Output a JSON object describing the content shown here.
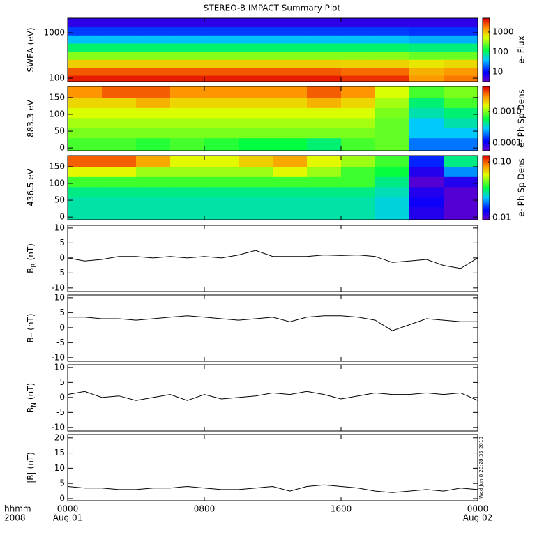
{
  "title": "STEREO-B IMPACT Summary Plot",
  "timestamp": "Wed Jun  8 20:28:35 2010",
  "x_axis": {
    "xlim": [
      0,
      24
    ],
    "xticks": [
      {
        "value": 0,
        "label": "0000"
      },
      {
        "value": 8,
        "label": "0800"
      },
      {
        "value": 16,
        "label": "1600"
      },
      {
        "value": 24,
        "label": "0000"
      }
    ],
    "dates": [
      {
        "value": 0,
        "label": "Aug 01"
      },
      {
        "value": 24,
        "label": "Aug 02"
      }
    ],
    "corner_labels": [
      "hhmm",
      "2008"
    ]
  },
  "chart_data": [
    {
      "type": "heatmap",
      "ylabel": "SWEA (eV)",
      "log": true,
      "ylim": [
        84,
        2100
      ],
      "yticks": [
        100,
        1000
      ],
      "x": [
        1,
        3,
        5,
        7,
        9,
        11,
        13,
        15,
        17,
        19,
        21,
        23
      ],
      "y": [
        95,
        140,
        210,
        320,
        480,
        720,
        1100,
        1650
      ],
      "values": [
        [
          4000,
          4000,
          4000,
          4000,
          4000,
          4000,
          4000,
          4000,
          3500,
          3500,
          1500,
          2000
        ],
        [
          2500,
          2500,
          2500,
          2500,
          2500,
          2500,
          2500,
          2500,
          2200,
          2200,
          1200,
          1500
        ],
        [
          900,
          900,
          900,
          900,
          900,
          900,
          900,
          900,
          850,
          850,
          700,
          800
        ],
        [
          300,
          300,
          300,
          300,
          300,
          300,
          300,
          300,
          300,
          300,
          250,
          250
        ],
        [
          100,
          100,
          100,
          100,
          100,
          100,
          100,
          100,
          100,
          100,
          90,
          90
        ],
        [
          40,
          40,
          40,
          40,
          40,
          40,
          40,
          40,
          40,
          40,
          35,
          35
        ],
        [
          15,
          15,
          15,
          15,
          15,
          15,
          15,
          15,
          15,
          15,
          14,
          14
        ],
        [
          6,
          6,
          6,
          6,
          6,
          6,
          6,
          6,
          6,
          6,
          6,
          6
        ]
      ],
      "clim": [
        3.2,
        5000
      ],
      "cticks": [
        10,
        100,
        1000
      ],
      "clabel": "e- Flux"
    },
    {
      "type": "heatmap",
      "ylabel": "883.3 eV",
      "log": false,
      "ylim": [
        -8,
        183
      ],
      "yticks": [
        0,
        50,
        100,
        150
      ],
      "x": [
        1,
        3,
        5,
        7,
        9,
        11,
        13,
        15,
        17,
        19,
        21,
        23
      ],
      "y": [
        15,
        45,
        75,
        105,
        135,
        165
      ],
      "values": [
        [
          0.0008,
          0.0008,
          0.0007,
          0.0008,
          0.0007,
          0.0006,
          0.0006,
          0.0005,
          0.0008,
          0.0009,
          0.0002,
          0.0002
        ],
        [
          0.001,
          0.001,
          0.001,
          0.001,
          0.001,
          0.001,
          0.001,
          0.001,
          0.001,
          0.0009,
          0.0003,
          0.0003
        ],
        [
          0.0012,
          0.0012,
          0.0012,
          0.0012,
          0.0012,
          0.0012,
          0.0012,
          0.0012,
          0.0012,
          0.0009,
          0.0003,
          0.0004
        ],
        [
          0.0015,
          0.0015,
          0.0015,
          0.0015,
          0.0015,
          0.0015,
          0.0015,
          0.0015,
          0.0015,
          0.001,
          0.0004,
          0.0005
        ],
        [
          0.002,
          0.002,
          0.0025,
          0.002,
          0.002,
          0.002,
          0.002,
          0.0025,
          0.002,
          0.0012,
          0.0005,
          0.0008
        ],
        [
          0.003,
          0.004,
          0.004,
          0.003,
          0.003,
          0.003,
          0.003,
          0.004,
          0.003,
          0.0015,
          0.0008,
          0.001
        ]
      ],
      "clim": [
        5.7e-05,
        0.0063
      ],
      "cticks": [
        0.0001,
        {
          "value": 0.001,
          "label": "0.0010"
        }
      ],
      "clabel": "e- Ph Sp Dens"
    },
    {
      "type": "heatmap",
      "ylabel": "436.5 eV",
      "log": false,
      "ylim": [
        -8,
        183
      ],
      "yticks": [
        0,
        50,
        100,
        150
      ],
      "x": [
        1,
        3,
        5,
        7,
        9,
        11,
        13,
        15,
        17,
        19,
        21,
        23
      ],
      "y": [
        15,
        45,
        75,
        105,
        135,
        165
      ],
      "values": [
        [
          0.028,
          0.028,
          0.028,
          0.028,
          0.028,
          0.028,
          0.028,
          0.028,
          0.028,
          0.025,
          0.012,
          0.01
        ],
        [
          0.028,
          0.028,
          0.028,
          0.028,
          0.028,
          0.028,
          0.028,
          0.028,
          0.028,
          0.025,
          0.013,
          0.01
        ],
        [
          0.03,
          0.03,
          0.03,
          0.03,
          0.03,
          0.03,
          0.03,
          0.03,
          0.03,
          0.027,
          0.012,
          0.01
        ],
        [
          0.04,
          0.04,
          0.04,
          0.04,
          0.04,
          0.04,
          0.04,
          0.04,
          0.04,
          0.03,
          0.01,
          0.012
        ],
        [
          0.06,
          0.06,
          0.05,
          0.05,
          0.05,
          0.05,
          0.06,
          0.05,
          0.04,
          0.035,
          0.012,
          0.02
        ],
        [
          0.1,
          0.1,
          0.08,
          0.06,
          0.06,
          0.07,
          0.08,
          0.06,
          0.05,
          0.04,
          0.015,
          0.03
        ]
      ],
      "clim": [
        0.0092,
        0.13
      ],
      "cticks": [
        0.01,
        {
          "value": 0.1,
          "label": "0.10"
        }
      ],
      "clabel": "e- Ph Sp Dens"
    },
    {
      "type": "line",
      "ylabel": "B",
      "ylabel_sub": "R",
      "ylabel_unit": "(nT)",
      "ylim": [
        -11.2,
        10.9
      ],
      "yticks": [
        -10,
        -5,
        0,
        5,
        10
      ],
      "color": "#000000",
      "x": [
        0,
        1,
        2,
        3,
        4,
        5,
        6,
        7,
        8,
        9,
        10,
        11,
        12,
        13,
        14,
        15,
        16,
        17,
        18,
        19,
        20,
        21,
        22,
        23,
        24
      ],
      "values": [
        0,
        -1,
        -0.5,
        0.5,
        0.5,
        0,
        0.5,
        0,
        0.5,
        0,
        1,
        2.5,
        0.5,
        0.5,
        0.5,
        1,
        0.8,
        1,
        0.5,
        -1.5,
        -1,
        -0.5,
        -2.5,
        -3.5,
        0
      ]
    },
    {
      "type": "line",
      "ylabel": "B",
      "ylabel_sub": "T",
      "ylabel_unit": "(nT)",
      "ylim": [
        -11.2,
        10.9
      ],
      "yticks": [
        -10,
        -5,
        0,
        5,
        10
      ],
      "color": "#000000",
      "x": [
        0,
        1,
        2,
        3,
        4,
        5,
        6,
        7,
        8,
        9,
        10,
        11,
        12,
        13,
        14,
        15,
        16,
        17,
        18,
        19,
        20,
        21,
        22,
        23,
        24
      ],
      "values": [
        3.5,
        3.5,
        3,
        3,
        2.5,
        3,
        3.5,
        4,
        3.5,
        3,
        2.5,
        3,
        3.5,
        2,
        3.5,
        4,
        4,
        3.5,
        2.5,
        -1,
        1,
        3,
        2.5,
        2,
        2
      ]
    },
    {
      "type": "line",
      "ylabel": "B",
      "ylabel_sub": "N",
      "ylabel_unit": "(nT)",
      "ylim": [
        -11.2,
        10.9
      ],
      "yticks": [
        -10,
        -5,
        0,
        5,
        10
      ],
      "color": "#000000",
      "x": [
        0,
        1,
        2,
        3,
        4,
        5,
        6,
        7,
        8,
        9,
        10,
        11,
        12,
        13,
        14,
        15,
        16,
        17,
        18,
        19,
        20,
        21,
        22,
        23,
        24
      ],
      "values": [
        1,
        2,
        0,
        0.5,
        -1,
        0,
        1,
        -1,
        1,
        -0.5,
        0,
        0.5,
        1.5,
        1,
        2,
        1,
        -0.5,
        0.5,
        1.5,
        1,
        1,
        1.5,
        1,
        1.5,
        -1
      ]
    },
    {
      "type": "line",
      "ylabel": "|B|",
      "ylabel_unit": "(nT)",
      "ylim": [
        -0.7,
        21.1
      ],
      "yticks": [
        0,
        5,
        10,
        15,
        20
      ],
      "color": "#000000",
      "x": [
        0,
        1,
        2,
        3,
        4,
        5,
        6,
        7,
        8,
        9,
        10,
        11,
        12,
        13,
        14,
        15,
        16,
        17,
        18,
        19,
        20,
        21,
        22,
        23,
        24
      ],
      "values": [
        4,
        3.5,
        3.5,
        3,
        3,
        3.5,
        3.5,
        4,
        3.5,
        3,
        3,
        3.5,
        4,
        2.5,
        4,
        4.5,
        4,
        3.5,
        2.5,
        2,
        2.5,
        3,
        2.5,
        3.5,
        3
      ]
    }
  ]
}
